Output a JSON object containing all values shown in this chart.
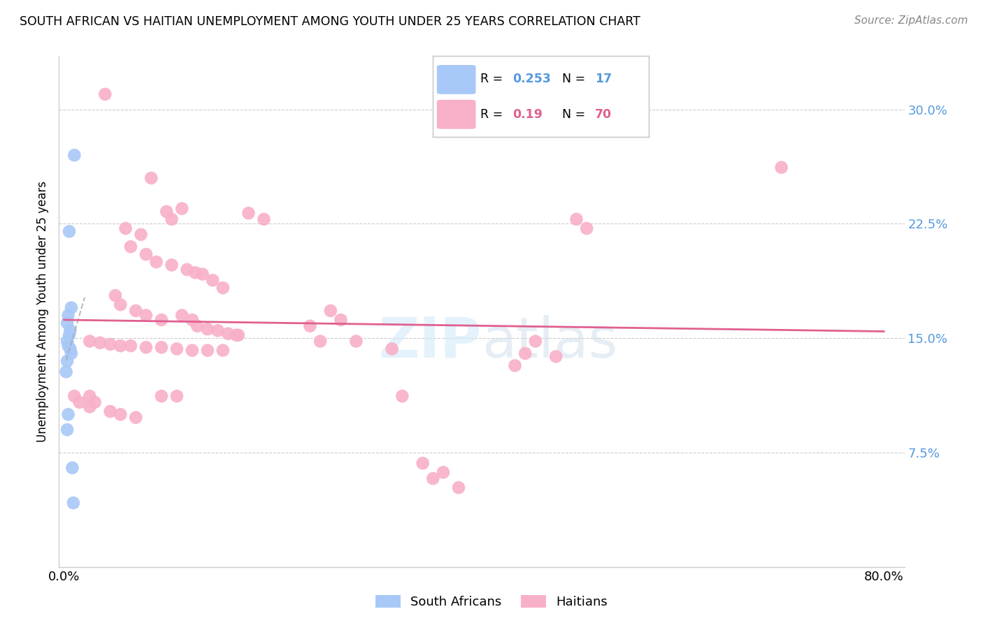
{
  "title": "SOUTH AFRICAN VS HAITIAN UNEMPLOYMENT AMONG YOUTH UNDER 25 YEARS CORRELATION CHART",
  "source": "Source: ZipAtlas.com",
  "ylabel": "Unemployment Among Youth under 25 years",
  "yticks": [
    0.0,
    0.075,
    0.15,
    0.225,
    0.3
  ],
  "ytick_labels": [
    "",
    "7.5%",
    "15.0%",
    "22.5%",
    "30.0%"
  ],
  "xticks": [
    0.0,
    0.1,
    0.2,
    0.3,
    0.4,
    0.5,
    0.6,
    0.7,
    0.8
  ],
  "xlim": [
    -0.005,
    0.82
  ],
  "ylim": [
    0.0,
    0.335
  ],
  "south_african_R": 0.253,
  "south_african_N": 17,
  "haitian_R": 0.19,
  "haitian_N": 70,
  "sa_color": "#a8c8f8",
  "haitian_color": "#f8b0c8",
  "sa_line_color": "#5599dd",
  "haitian_line_color": "#e06090",
  "sa_scatter": [
    [
      0.01,
      0.27
    ],
    [
      0.005,
      0.22
    ],
    [
      0.007,
      0.17
    ],
    [
      0.004,
      0.165
    ],
    [
      0.003,
      0.16
    ],
    [
      0.006,
      0.155
    ],
    [
      0.005,
      0.152
    ],
    [
      0.003,
      0.148
    ],
    [
      0.004,
      0.145
    ],
    [
      0.006,
      0.143
    ],
    [
      0.007,
      0.14
    ],
    [
      0.003,
      0.135
    ],
    [
      0.002,
      0.128
    ],
    [
      0.004,
      0.1
    ],
    [
      0.003,
      0.09
    ],
    [
      0.008,
      0.065
    ],
    [
      0.009,
      0.042
    ]
  ],
  "haitian_scatter": [
    [
      0.04,
      0.31
    ],
    [
      0.085,
      0.255
    ],
    [
      0.1,
      0.233
    ],
    [
      0.105,
      0.228
    ],
    [
      0.06,
      0.222
    ],
    [
      0.075,
      0.218
    ],
    [
      0.115,
      0.235
    ],
    [
      0.18,
      0.232
    ],
    [
      0.195,
      0.228
    ],
    [
      0.135,
      0.192
    ],
    [
      0.145,
      0.188
    ],
    [
      0.05,
      0.178
    ],
    [
      0.055,
      0.172
    ],
    [
      0.07,
      0.168
    ],
    [
      0.08,
      0.165
    ],
    [
      0.095,
      0.162
    ],
    [
      0.115,
      0.165
    ],
    [
      0.125,
      0.162
    ],
    [
      0.26,
      0.168
    ],
    [
      0.27,
      0.162
    ],
    [
      0.13,
      0.158
    ],
    [
      0.14,
      0.156
    ],
    [
      0.15,
      0.155
    ],
    [
      0.16,
      0.153
    ],
    [
      0.17,
      0.152
    ],
    [
      0.24,
      0.158
    ],
    [
      0.025,
      0.148
    ],
    [
      0.035,
      0.147
    ],
    [
      0.045,
      0.146
    ],
    [
      0.055,
      0.145
    ],
    [
      0.065,
      0.145
    ],
    [
      0.08,
      0.144
    ],
    [
      0.095,
      0.144
    ],
    [
      0.11,
      0.143
    ],
    [
      0.125,
      0.142
    ],
    [
      0.14,
      0.142
    ],
    [
      0.155,
      0.142
    ],
    [
      0.25,
      0.148
    ],
    [
      0.285,
      0.148
    ],
    [
      0.32,
      0.143
    ],
    [
      0.01,
      0.112
    ],
    [
      0.025,
      0.112
    ],
    [
      0.015,
      0.108
    ],
    [
      0.025,
      0.105
    ],
    [
      0.03,
      0.108
    ],
    [
      0.045,
      0.102
    ],
    [
      0.055,
      0.1
    ],
    [
      0.07,
      0.098
    ],
    [
      0.095,
      0.112
    ],
    [
      0.11,
      0.112
    ],
    [
      0.45,
      0.14
    ],
    [
      0.48,
      0.138
    ],
    [
      0.46,
      0.148
    ],
    [
      0.5,
      0.228
    ],
    [
      0.51,
      0.222
    ],
    [
      0.44,
      0.132
    ],
    [
      0.33,
      0.112
    ],
    [
      0.35,
      0.068
    ],
    [
      0.37,
      0.062
    ],
    [
      0.36,
      0.058
    ],
    [
      0.385,
      0.052
    ],
    [
      0.7,
      0.262
    ],
    [
      0.065,
      0.21
    ],
    [
      0.08,
      0.205
    ],
    [
      0.09,
      0.2
    ],
    [
      0.105,
      0.198
    ],
    [
      0.12,
      0.195
    ],
    [
      0.128,
      0.193
    ],
    [
      0.155,
      0.183
    ],
    [
      0.168,
      0.152
    ]
  ]
}
